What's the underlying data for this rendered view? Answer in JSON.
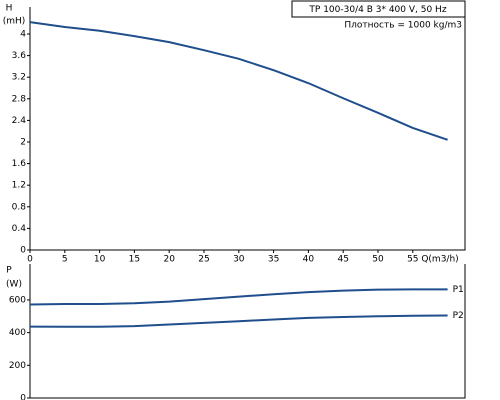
{
  "chart_data": [
    {
      "type": "line",
      "title": "TP 100-30/4 B    3* 400 V, 50 Hz",
      "subtitle": "Плотность = 1000 kg/m3",
      "y_label": "H",
      "y_unit": "(mH)",
      "x_label": "Q(m3/h)",
      "x": [
        0,
        5,
        10,
        15,
        20,
        25,
        30,
        35,
        40,
        45,
        50,
        55,
        60
      ],
      "series": [
        {
          "color": "#1f4e8c",
          "values": [
            4.22,
            4.13,
            4.06,
            3.96,
            3.85,
            3.7,
            3.54,
            3.33,
            3.09,
            2.81,
            2.54,
            2.26,
            2.04
          ]
        }
      ],
      "xlim": [
        0,
        62.5
      ],
      "xticks": [
        0,
        5,
        10,
        15,
        20,
        25,
        30,
        35,
        40,
        45,
        50,
        55
      ],
      "ylim": [
        0,
        4.5
      ],
      "yticks": [
        0,
        0.4,
        0.8,
        1.2,
        1.6,
        2,
        2.4,
        2.8,
        3.2,
        3.6,
        4
      ]
    },
    {
      "type": "line",
      "y_label": "P",
      "y_unit": "(W)",
      "x": [
        0,
        5,
        10,
        15,
        20,
        25,
        30,
        35,
        40,
        45,
        50,
        55,
        60
      ],
      "series": [
        {
          "name": "P1",
          "color": "#1f4e8c",
          "values": [
            572,
            575,
            575,
            580,
            590,
            605,
            620,
            635,
            648,
            657,
            663,
            665,
            665
          ]
        },
        {
          "name": "P2",
          "color": "#1f4e8c",
          "values": [
            437,
            436,
            436,
            440,
            450,
            460,
            470,
            480,
            490,
            496,
            500,
            503,
            505
          ]
        }
      ],
      "xlim": [
        0,
        62.5
      ],
      "ylim": [
        0,
        820
      ],
      "yticks": [
        0,
        200,
        400,
        600
      ]
    }
  ]
}
